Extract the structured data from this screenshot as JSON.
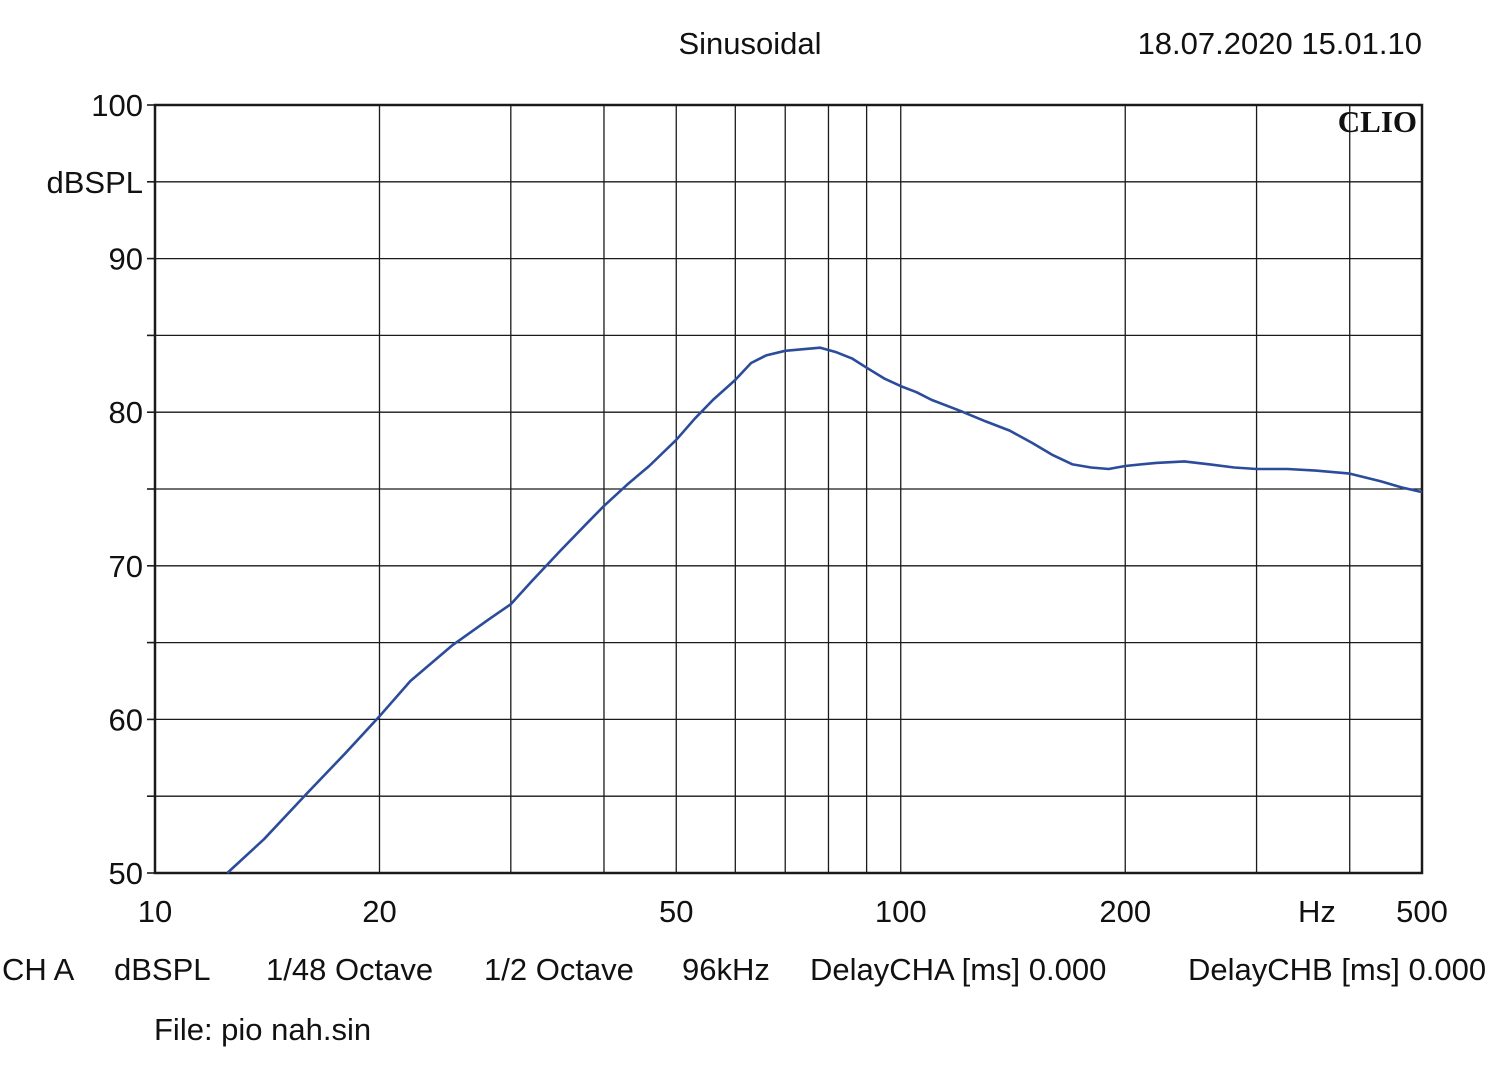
{
  "header": {
    "title": "Sinusoidal",
    "timestamp": "18.07.2020 15.01.10"
  },
  "logo": "CLIO",
  "footer": {
    "channel": "CH A",
    "unit": "dBSPL",
    "resolution": "1/48 Octave",
    "smoothing": "1/2 Octave",
    "sample_rate": "96kHz",
    "delay_a": "DelayCHA [ms] 0.000",
    "delay_b": "DelayCHB [ms] 0.000"
  },
  "file": "File: pio nah.sin",
  "colors": {
    "curve": "#2b4c9a",
    "grid": "#1a1a1a",
    "text": "#111111"
  },
  "chart_data": {
    "type": "line",
    "title": "Sinusoidal",
    "xlabel": "Hz",
    "ylabel": "dBSPL",
    "x_scale": "log",
    "xlim": [
      10,
      500
    ],
    "ylim": [
      50,
      100
    ],
    "grid": true,
    "x_tick_labels": [
      "10",
      "20",
      "50",
      "100",
      "200",
      "500"
    ],
    "x_tick_values": [
      10,
      20,
      50,
      100,
      200,
      500
    ],
    "y_tick_labels": [
      "100",
      "90",
      "80",
      "70",
      "60",
      "50"
    ],
    "y_tick_values": [
      100,
      90,
      80,
      70,
      60,
      50
    ],
    "series": [
      {
        "x": [
          12.5,
          14,
          16,
          18,
          20,
          22,
          25,
          28,
          30,
          32,
          35,
          38,
          40,
          43,
          46,
          50,
          53,
          56,
          60,
          63,
          66,
          70,
          74,
          78,
          82,
          86,
          90,
          95,
          100,
          105,
          110,
          120,
          130,
          140,
          150,
          160,
          170,
          180,
          190,
          200,
          220,
          240,
          260,
          280,
          300,
          330,
          360,
          400,
          440,
          470,
          500
        ],
        "y": [
          50,
          52.2,
          55.2,
          57.8,
          60.2,
          62.5,
          64.8,
          66.5,
          67.5,
          69.0,
          71.0,
          72.8,
          73.9,
          75.3,
          76.5,
          78.2,
          79.6,
          80.8,
          82.1,
          83.2,
          83.7,
          84.0,
          84.1,
          84.2,
          83.9,
          83.5,
          82.9,
          82.2,
          81.7,
          81.3,
          80.8,
          80.1,
          79.4,
          78.8,
          78.0,
          77.2,
          76.6,
          76.4,
          76.3,
          76.5,
          76.7,
          76.8,
          76.6,
          76.4,
          76.3,
          76.3,
          76.2,
          76.0,
          75.5,
          75.1,
          74.8
        ]
      }
    ]
  }
}
